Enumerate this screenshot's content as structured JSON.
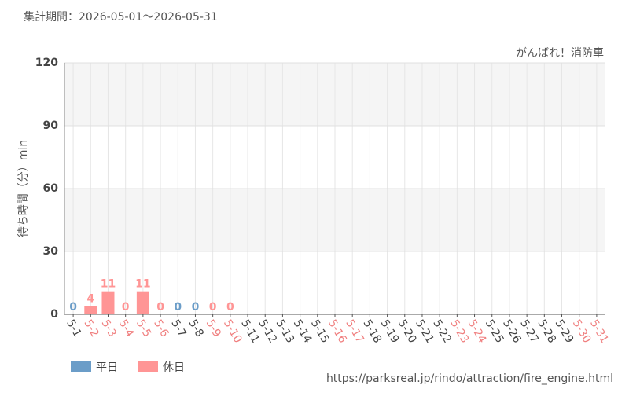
{
  "chart_data": {
    "type": "bar",
    "title": "集計期間：2026-05-01～2026-05-31",
    "subtitle": "がんばれ！消防車",
    "y_label": "待ち時間（分）min",
    "source": "https://parksreal.jp/rindo/attraction/fire_engine.html",
    "categories": [
      "5-1",
      "5-2",
      "5-3",
      "5-4",
      "5-5",
      "5-6",
      "5-7",
      "5-8",
      "5-9",
      "5-10",
      "5-11",
      "5-12",
      "5-13",
      "5-14",
      "5-15",
      "5-16",
      "5-17",
      "5-18",
      "5-19",
      "5-20",
      "5-21",
      "5-22",
      "5-23",
      "5-24",
      "5-25",
      "5-26",
      "5-27",
      "5-28",
      "5-29",
      "5-30",
      "5-31"
    ],
    "category_colors": [
      "#444",
      "#f08080",
      "#f08080",
      "#f08080",
      "#f08080",
      "#f08080",
      "#444",
      "#444",
      "#f08080",
      "#f08080",
      "#444",
      "#444",
      "#444",
      "#444",
      "#444",
      "#f08080",
      "#f08080",
      "#444",
      "#444",
      "#444",
      "#444",
      "#444",
      "#f08080",
      "#f08080",
      "#444",
      "#444",
      "#444",
      "#444",
      "#444",
      "#f08080",
      "#f08080"
    ],
    "series": [
      {
        "name": "平日",
        "color": "#6b9dc8",
        "values": [
          0,
          null,
          null,
          null,
          null,
          null,
          0,
          0,
          null,
          null,
          null,
          null,
          null,
          null,
          null,
          null,
          null,
          null,
          null,
          null,
          null,
          null,
          null,
          null,
          null,
          null,
          null,
          null,
          null,
          null,
          null
        ]
      },
      {
        "name": "休日",
        "color": "#ff9595",
        "values": [
          null,
          4,
          11,
          0,
          11,
          0,
          null,
          null,
          0,
          0,
          null,
          null,
          null,
          null,
          null,
          null,
          null,
          null,
          null,
          null,
          null,
          null,
          null,
          null,
          null,
          null,
          null,
          null,
          null,
          null,
          null
        ]
      }
    ],
    "ylim": [
      0,
      120
    ],
    "yticks": [
      0,
      30,
      60,
      90,
      120
    ],
    "grid": true
  }
}
